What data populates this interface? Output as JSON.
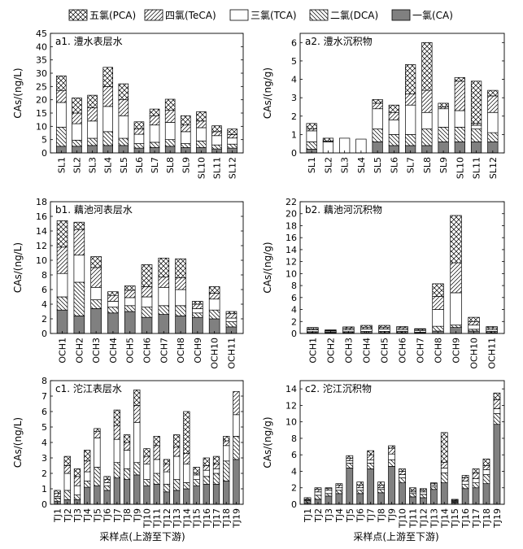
{
  "legend": {
    "items": [
      {
        "label": "五氯(PCA)",
        "pattern": "crosshatch"
      },
      {
        "label": "四氯(TeCA)",
        "pattern": "fwd"
      },
      {
        "label": "三氯(TCA)",
        "pattern": "white"
      },
      {
        "label": "二氯(DCA)",
        "pattern": "back"
      },
      {
        "label": "一氯(CA)",
        "pattern": "gray"
      }
    ]
  },
  "x_caption": "采样点(上游至下游)",
  "colors": {
    "gray_fill": "#808080",
    "stroke": "#000000",
    "background": "#ffffff"
  },
  "chart_data": [
    {
      "panel": "a1",
      "type": "bar",
      "stacked": true,
      "title": "a1. 澧水表层水",
      "ylabel": "CAs/(ng/L)",
      "ylim": [
        0,
        45
      ],
      "yticks": [
        0,
        5,
        10,
        15,
        20,
        25,
        30,
        35,
        40,
        45
      ],
      "categories": [
        "SL1",
        "SL2",
        "SL3",
        "SL4",
        "SL5",
        "SL6",
        "SL7",
        "SL8",
        "SL9",
        "SL10",
        "SL11",
        "SL12"
      ],
      "series": [
        {
          "name": "一氯(CA)",
          "values": [
            2.5,
            2.5,
            2.8,
            2.8,
            2.8,
            1.8,
            2.0,
            2.5,
            2.0,
            2.0,
            1.5,
            1.8
          ]
        },
        {
          "name": "二氯(DCA)",
          "values": [
            7.2,
            2.3,
            2.7,
            5.2,
            2.7,
            1.7,
            2.0,
            2.5,
            1.5,
            2.5,
            1.5,
            1.5
          ]
        },
        {
          "name": "三氯(TCA)",
          "values": [
            9.3,
            6.2,
            6.5,
            9.5,
            8.5,
            3.5,
            6.5,
            6.5,
            4.5,
            5.0,
            3.5,
            2.3
          ]
        },
        {
          "name": "四氯(TeCA)",
          "values": [
            4.5,
            4.0,
            5.0,
            7.5,
            6.0,
            2.0,
            3.5,
            4.5,
            2.5,
            2.5,
            1.5,
            1.3
          ]
        },
        {
          "name": "五氯(PCA)",
          "values": [
            5.5,
            5.7,
            4.7,
            7.2,
            6.0,
            2.7,
            2.5,
            4.2,
            3.5,
            3.5,
            2.2,
            2.1
          ]
        }
      ]
    },
    {
      "panel": "a2",
      "type": "bar",
      "stacked": true,
      "title": "a2. 澧水沉积物",
      "ylabel": "CAs/(ng/g)",
      "ylim": [
        0,
        6.5
      ],
      "yticks": [
        0,
        1,
        2,
        3,
        4,
        5,
        6
      ],
      "categories": [
        "SL1",
        "SL2",
        "SL3",
        "SL4",
        "SL5",
        "SL6",
        "SL7",
        "SL8",
        "SL9",
        "SL10",
        "SL11",
        "SL12"
      ],
      "series": [
        {
          "name": "一氯(CA)",
          "values": [
            0.2,
            0.0,
            0.0,
            0.0,
            0.6,
            0.4,
            0.4,
            0.4,
            0.6,
            0.6,
            0.6,
            0.6
          ]
        },
        {
          "name": "二氯(DCA)",
          "values": [
            0.4,
            0.0,
            0.0,
            0.0,
            0.7,
            0.6,
            0.6,
            0.9,
            0.8,
            0.8,
            0.7,
            0.5
          ]
        },
        {
          "name": "三氯(TCA)",
          "values": [
            0.6,
            0.6,
            0.8,
            0.75,
            1.1,
            0.8,
            1.6,
            0.9,
            1.0,
            0.9,
            0.2,
            1.1
          ]
        },
        {
          "name": "四氯(TeCA)",
          "values": [
            0.1,
            0.05,
            0.0,
            0.0,
            0.3,
            0.4,
            0.6,
            1.2,
            0.1,
            1.6,
            0.1,
            0.9
          ]
        },
        {
          "name": "五氯(PCA)",
          "values": [
            0.3,
            0.15,
            0.0,
            0.0,
            0.2,
            0.4,
            1.6,
            2.6,
            0.2,
            0.2,
            2.3,
            0.3
          ]
        }
      ]
    },
    {
      "panel": "b1",
      "type": "bar",
      "stacked": true,
      "title": "b1. 藕池河表层水",
      "ylabel": "CAs/(ng/L)",
      "ylim": [
        0,
        18
      ],
      "yticks": [
        0,
        2,
        4,
        6,
        8,
        10,
        12,
        14,
        16,
        18
      ],
      "categories": [
        "OCH1",
        "OCH2",
        "OCH3",
        "OCH4",
        "OCH5",
        "OCH6",
        "OCH7",
        "OCH8",
        "OCH9",
        "OCH10",
        "OCH11"
      ],
      "series": [
        {
          "name": "一氯(CA)",
          "values": [
            3.2,
            2.4,
            3.4,
            2.8,
            3.0,
            2.2,
            2.6,
            2.4,
            2.2,
            2.0,
            0.9
          ]
        },
        {
          "name": "二氯(DCA)",
          "values": [
            1.8,
            4.6,
            1.2,
            0.8,
            0.8,
            1.4,
            1.2,
            1.4,
            0.6,
            1.2,
            0.7
          ]
        },
        {
          "name": "三氯(TCA)",
          "values": [
            3.2,
            3.7,
            1.7,
            0.8,
            1.1,
            1.4,
            2.5,
            2.2,
            0.6,
            1.5,
            0.5
          ]
        },
        {
          "name": "四氯(TeCA)",
          "values": [
            3.6,
            3.5,
            2.7,
            0.8,
            1.0,
            1.4,
            1.4,
            1.6,
            0.6,
            0.8,
            0.6
          ]
        },
        {
          "name": "五氯(PCA)",
          "values": [
            3.6,
            1.0,
            1.5,
            0.5,
            0.6,
            3.0,
            2.6,
            2.6,
            0.4,
            0.9,
            0.3
          ]
        }
      ]
    },
    {
      "panel": "b2",
      "type": "bar",
      "stacked": true,
      "title": "b2. 藕池河沉积物",
      "ylabel": "CAs/(ng/g)",
      "ylim": [
        0,
        22
      ],
      "yticks": [
        0,
        2,
        4,
        6,
        8,
        10,
        12,
        14,
        16,
        18,
        20,
        22
      ],
      "categories": [
        "OCH1",
        "OCH2",
        "OCH3",
        "OCH4",
        "OCH5",
        "OCH6",
        "OCH7",
        "OCH8",
        "OCH9",
        "OCH10",
        "OCH11"
      ],
      "series": [
        {
          "name": "一氯(CA)",
          "values": [
            0.15,
            0.1,
            0.15,
            0.15,
            0.15,
            0.15,
            0.1,
            0.4,
            1.0,
            0.4,
            0.15
          ]
        },
        {
          "name": "二氯(DCA)",
          "values": [
            0.15,
            0.1,
            0.15,
            0.2,
            0.2,
            0.2,
            0.1,
            0.8,
            0.4,
            0.3,
            0.2
          ]
        },
        {
          "name": "三氯(TCA)",
          "values": [
            0.3,
            0.2,
            0.3,
            0.4,
            0.4,
            0.3,
            0.3,
            2.8,
            5.4,
            0.7,
            0.3
          ]
        },
        {
          "name": "四氯(TeCA)",
          "values": [
            0.2,
            0.1,
            0.3,
            0.3,
            0.3,
            0.3,
            0.2,
            2.2,
            5.0,
            0.6,
            0.3
          ]
        },
        {
          "name": "五氯(PCA)",
          "values": [
            0.2,
            0.1,
            0.2,
            0.3,
            0.3,
            0.2,
            0.1,
            2.1,
            7.9,
            0.7,
            0.2
          ]
        }
      ]
    },
    {
      "panel": "c1",
      "type": "bar",
      "stacked": true,
      "title": "c1. 沱江表层水",
      "ylabel": "CAs/(ng/L)",
      "ylim": [
        0,
        8
      ],
      "yticks": [
        0,
        1,
        2,
        3,
        4,
        5,
        6,
        7,
        8
      ],
      "categories": [
        "TJ1",
        "TJ2",
        "TJ3",
        "TJ4",
        "TJ5",
        "TJ6",
        "TJ7",
        "TJ8",
        "TJ9",
        "TJ10",
        "TJ11",
        "TJ12",
        "TJ13",
        "TJ14",
        "TJ15",
        "TJ16",
        "TJ17",
        "TJ18",
        "TJ19"
      ],
      "series": [
        {
          "name": "一氯(CA)",
          "values": [
            0.2,
            0.3,
            0.3,
            1.1,
            1.2,
            0.9,
            1.7,
            1.6,
            1.9,
            1.2,
            1.3,
            0.8,
            0.9,
            1.0,
            1.2,
            1.3,
            1.3,
            1.5,
            2.9
          ]
        },
        {
          "name": "二氯(DCA)",
          "values": [
            0.2,
            0.6,
            0.3,
            0.4,
            1.2,
            0.3,
            1.0,
            0.7,
            0.8,
            0.4,
            0.7,
            0.5,
            0.7,
            0.4,
            0.4,
            0.5,
            0.7,
            1.3,
            1.5
          ]
        },
        {
          "name": "三氯(TCA)",
          "values": [
            0.1,
            1.1,
            0.6,
            0.6,
            1.9,
            0.2,
            1.5,
            1.2,
            2.6,
            1.0,
            0.9,
            0.8,
            1.5,
            1.2,
            0.3,
            0.4,
            0.3,
            1.0,
            1.4
          ]
        },
        {
          "name": "四氯(TeCA)",
          "values": [
            0.2,
            0.5,
            0.6,
            0.7,
            0.4,
            0.2,
            0.9,
            0.5,
            1.1,
            0.5,
            0.9,
            0.5,
            0.6,
            0.7,
            0.1,
            0.3,
            0.3,
            0.3,
            1.5
          ]
        },
        {
          "name": "五氯(PCA)",
          "values": [
            0.2,
            0.6,
            0.5,
            0.7,
            0.2,
            0.2,
            1.0,
            0.5,
            1.0,
            0.5,
            0.6,
            0.3,
            0.8,
            2.7,
            0.4,
            0.5,
            0.5,
            0.3,
            0.0
          ]
        }
      ]
    },
    {
      "panel": "c2",
      "type": "bar",
      "stacked": true,
      "title": "c2. 沱江沉积物",
      "ylabel": "CAs/(ng/g)",
      "ylim": [
        0,
        15
      ],
      "yticks": [
        0,
        2,
        4,
        6,
        8,
        10,
        12,
        14
      ],
      "categories": [
        "TJ1",
        "TJ2",
        "TJ3",
        "TJ4",
        "TJ5",
        "TJ6",
        "TJ7",
        "TJ8",
        "TJ9",
        "TJ10",
        "TJ11",
        "TJ12",
        "TJ13",
        "TJ14",
        "TJ15",
        "TJ16",
        "TJ17",
        "TJ18",
        "TJ19"
      ],
      "series": [
        {
          "name": "一氯(CA)",
          "values": [
            0.2,
            0.6,
            1.0,
            1.3,
            4.4,
            1.3,
            4.3,
            1.4,
            4.6,
            2.6,
            0.9,
            0.8,
            1.8,
            2.6,
            0.2,
            1.9,
            2.0,
            2.5,
            9.7
          ]
        },
        {
          "name": "二氯(DCA)",
          "values": [
            0.2,
            0.5,
            0.3,
            0.4,
            0.6,
            0.4,
            0.7,
            0.4,
            0.8,
            0.6,
            0.4,
            0.4,
            0.3,
            1.2,
            0.1,
            0.5,
            0.6,
            1.1,
            1.3
          ]
        },
        {
          "name": "三氯(TCA)",
          "values": [
            0.1,
            0.4,
            0.4,
            0.3,
            0.3,
            0.3,
            0.4,
            0.2,
            0.7,
            0.4,
            0.2,
            0.3,
            0.2,
            0.6,
            0.1,
            0.4,
            0.5,
            0.6,
            0.6
          ]
        },
        {
          "name": "四氯(TeCA)",
          "values": [
            0.1,
            0.3,
            0.2,
            0.3,
            0.3,
            0.3,
            0.6,
            0.3,
            0.7,
            0.4,
            0.2,
            0.2,
            0.2,
            0.7,
            0.1,
            0.4,
            0.7,
            0.5,
            1.1
          ]
        },
        {
          "name": "五氯(PCA)",
          "values": [
            0.2,
            0.2,
            0.1,
            0.2,
            0.3,
            0.4,
            0.5,
            0.4,
            0.3,
            0.3,
            0.3,
            0.2,
            0.1,
            3.6,
            0.1,
            0.3,
            0.5,
            0.8,
            0.8
          ]
        }
      ]
    }
  ]
}
